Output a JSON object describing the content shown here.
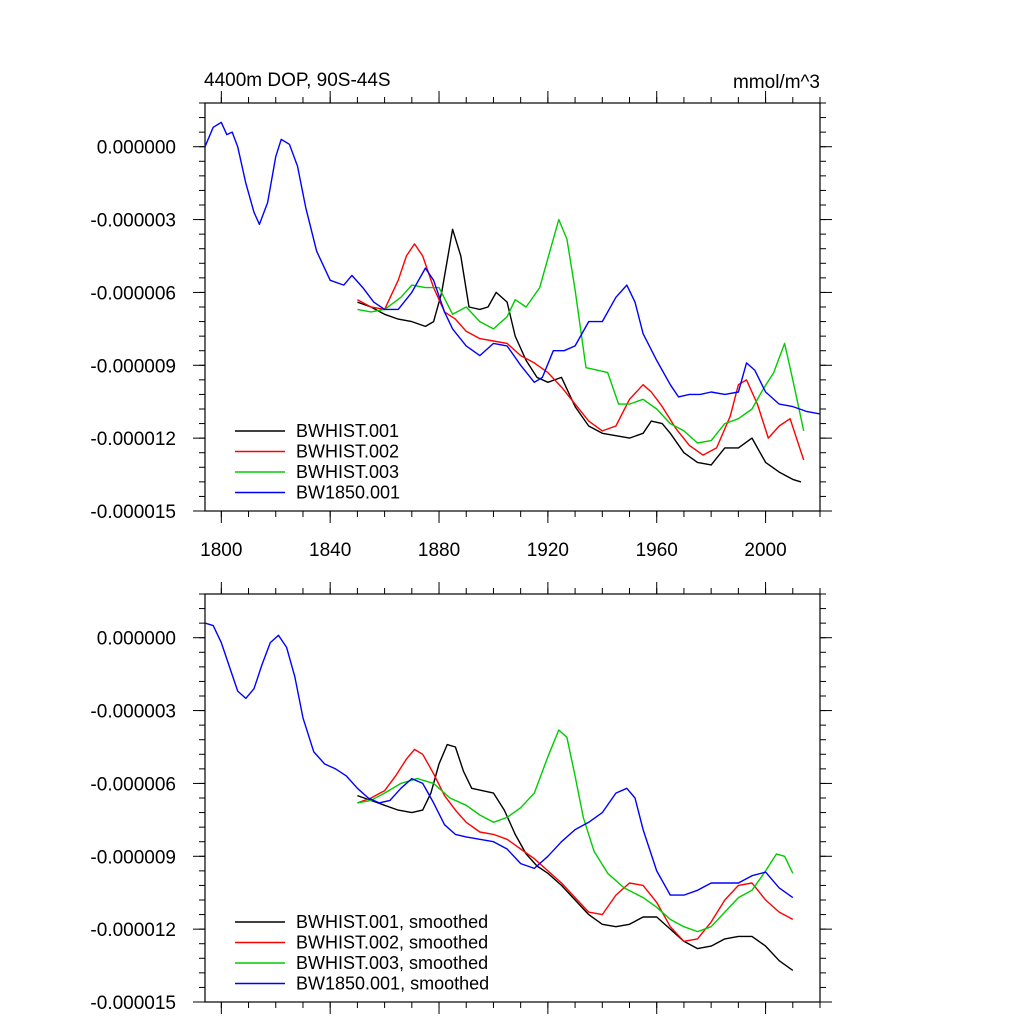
{
  "chart_data": [
    {
      "type": "line",
      "title": "4400m DOP, 90S-44S",
      "units": "mmol/m^3",
      "xlabel": "",
      "ylabel": "",
      "xlim": [
        1794,
        2020
      ],
      "ylim": [
        -1.5e-05,
        1.8e-06
      ],
      "xticks": [
        1800,
        1840,
        1880,
        1920,
        1960,
        2000
      ],
      "xtick_labels": [
        "1800",
        "1840",
        "1880",
        "1920",
        "1960",
        "2000"
      ],
      "yticks": [
        0,
        -3e-06,
        -6e-06,
        -9e-06,
        -1.2e-05,
        -1.5e-05
      ],
      "ytick_labels": [
        "0.000000",
        "-0.000003",
        "-0.000006",
        "-0.000009",
        "-0.000012",
        "-0.000015"
      ],
      "grid": false,
      "legend_position": "bottom-left",
      "series": [
        {
          "name": "BWHIST.001",
          "color": "#000000",
          "x": [
            1850,
            1855,
            1860,
            1865,
            1870,
            1875,
            1878,
            1881,
            1885,
            1888,
            1891,
            1895,
            1898,
            1901,
            1905,
            1908,
            1912,
            1916,
            1920,
            1925,
            1930,
            1935,
            1940,
            1945,
            1950,
            1955,
            1958,
            1962,
            1965,
            1970,
            1975,
            1980,
            1985,
            1990,
            1995,
            2000,
            2005,
            2010,
            2013
          ],
          "values": [
            -6.4e-06,
            -6.6e-06,
            -6.9e-06,
            -7.1e-06,
            -7.2e-06,
            -7.4e-06,
            -7.2e-06,
            -6e-06,
            -3.4e-06,
            -4.5e-06,
            -6.6e-06,
            -6.7e-06,
            -6.6e-06,
            -6e-06,
            -6.4e-06,
            -7.8e-06,
            -8.8e-06,
            -9.5e-06,
            -9.7e-06,
            -9.5e-06,
            -1.07e-05,
            -1.15e-05,
            -1.18e-05,
            -1.19e-05,
            -1.2e-05,
            -1.18e-05,
            -1.13e-05,
            -1.14e-05,
            -1.18e-05,
            -1.26e-05,
            -1.3e-05,
            -1.31e-05,
            -1.24e-05,
            -1.24e-05,
            -1.2e-05,
            -1.3e-05,
            -1.34e-05,
            -1.37e-05,
            -1.38e-05
          ]
        },
        {
          "name": "BWHIST.002",
          "color": "#ff0000",
          "x": [
            1850,
            1855,
            1860,
            1865,
            1868,
            1871,
            1874,
            1878,
            1882,
            1886,
            1890,
            1895,
            1900,
            1905,
            1910,
            1915,
            1920,
            1925,
            1930,
            1935,
            1940,
            1945,
            1950,
            1955,
            1958,
            1962,
            1967,
            1972,
            1977,
            1982,
            1987,
            1990,
            1993,
            1997,
            2001,
            2005,
            2009,
            2014
          ],
          "values": [
            -6.3e-06,
            -6.6e-06,
            -6.7e-06,
            -5.5e-06,
            -4.5e-06,
            -4e-06,
            -4.5e-06,
            -5.8e-06,
            -6.8e-06,
            -7.1e-06,
            -7.6e-06,
            -7.9e-06,
            -8e-06,
            -8.1e-06,
            -8.6e-06,
            -8.9e-06,
            -9.3e-06,
            -9.9e-06,
            -1.06e-05,
            -1.13e-05,
            -1.17e-05,
            -1.15e-05,
            -1.04e-05,
            -9.8e-06,
            -1.01e-05,
            -1.07e-05,
            -1.16e-05,
            -1.23e-05,
            -1.27e-05,
            -1.24e-05,
            -1.11e-05,
            -9.8e-06,
            -9.6e-06,
            -1.06e-05,
            -1.2e-05,
            -1.15e-05,
            -1.12e-05,
            -1.29e-05
          ]
        },
        {
          "name": "BWHIST.003",
          "color": "#00cc00",
          "x": [
            1850,
            1855,
            1860,
            1866,
            1870,
            1875,
            1880,
            1885,
            1890,
            1895,
            1900,
            1905,
            1908,
            1912,
            1917,
            1921,
            1924,
            1927,
            1930,
            1934,
            1938,
            1942,
            1946,
            1950,
            1955,
            1960,
            1965,
            1970,
            1975,
            1980,
            1985,
            1990,
            1995,
            1999,
            2003,
            2007,
            2010,
            2014
          ],
          "values": [
            -6.7e-06,
            -6.8e-06,
            -6.7e-06,
            -6.2e-06,
            -5.7e-06,
            -5.8e-06,
            -5.8e-06,
            -6.9e-06,
            -6.6e-06,
            -7.2e-06,
            -7.5e-06,
            -7e-06,
            -6.3e-06,
            -6.6e-06,
            -5.8e-06,
            -4.2e-06,
            -3e-06,
            -3.8e-06,
            -5.9e-06,
            -9.1e-06,
            -9.2e-06,
            -9.3e-06,
            -1.06e-05,
            -1.06e-05,
            -1.04e-05,
            -1.08e-05,
            -1.14e-05,
            -1.17e-05,
            -1.22e-05,
            -1.21e-05,
            -1.14e-05,
            -1.12e-05,
            -1.08e-05,
            -1e-05,
            -9.3e-06,
            -8.1e-06,
            -9.6e-06,
            -1.17e-05
          ]
        },
        {
          "name": "BW1850.001",
          "color": "#0000ff",
          "x": [
            1794,
            1797,
            1800,
            1802,
            1804,
            1806,
            1809,
            1812,
            1814,
            1817,
            1820,
            1822,
            1825,
            1828,
            1831,
            1835,
            1840,
            1845,
            1848,
            1852,
            1856,
            1860,
            1865,
            1870,
            1875,
            1878,
            1882,
            1885,
            1890,
            1895,
            1900,
            1905,
            1910,
            1915,
            1918,
            1922,
            1926,
            1930,
            1935,
            1940,
            1945,
            1949,
            1952,
            1955,
            1960,
            1965,
            1968,
            1972,
            1976,
            1980,
            1985,
            1990,
            1993,
            1996,
            2000,
            2005,
            2010,
            2015,
            2020
          ],
          "values": [
            0,
            8e-07,
            1e-06,
            5e-07,
            6e-07,
            0,
            -1.5e-06,
            -2.7e-06,
            -3.2e-06,
            -2.3e-06,
            -4e-07,
            3e-07,
            1e-07,
            -8e-07,
            -2.5e-06,
            -4.3e-06,
            -5.5e-06,
            -5.7e-06,
            -5.3e-06,
            -5.8e-06,
            -6.4e-06,
            -6.7e-06,
            -6.7e-06,
            -6e-06,
            -5e-06,
            -5.5e-06,
            -6.8e-06,
            -7.5e-06,
            -8.2e-06,
            -8.6e-06,
            -8.1e-06,
            -8.2e-06,
            -9e-06,
            -9.7e-06,
            -9.5e-06,
            -8.4e-06,
            -8.4e-06,
            -8.2e-06,
            -7.2e-06,
            -7.2e-06,
            -6.2e-06,
            -5.7e-06,
            -6.4e-06,
            -7.7e-06,
            -8.8e-06,
            -9.8e-06,
            -1.03e-05,
            -1.02e-05,
            -1.02e-05,
            -1.01e-05,
            -1.02e-05,
            -1.01e-05,
            -8.9e-06,
            -9.2e-06,
            -1.01e-05,
            -1.06e-05,
            -1.07e-05,
            -1.09e-05,
            -1.1e-05
          ]
        }
      ]
    },
    {
      "type": "line",
      "title": "",
      "xlabel": "",
      "ylabel": "",
      "xlim": [
        1794,
        2020
      ],
      "ylim": [
        -1.5e-05,
        1.8e-06
      ],
      "xticks": [
        1800,
        1840,
        1880,
        1920,
        1960,
        2000
      ],
      "yticks": [
        0,
        -3e-06,
        -6e-06,
        -9e-06,
        -1.2e-05,
        -1.5e-05
      ],
      "ytick_labels": [
        "0.000000",
        "-0.000003",
        "-0.000006",
        "-0.000009",
        "-0.000012",
        "-0.000015"
      ],
      "grid": false,
      "legend_position": "bottom-left",
      "series": [
        {
          "name": "BWHIST.001, smoothed",
          "color": "#000000",
          "x": [
            1850,
            1855,
            1860,
            1865,
            1870,
            1874,
            1877,
            1880,
            1883,
            1886,
            1889,
            1892,
            1896,
            1900,
            1904,
            1908,
            1912,
            1916,
            1920,
            1925,
            1930,
            1935,
            1940,
            1945,
            1950,
            1955,
            1960,
            1965,
            1970,
            1975,
            1980,
            1985,
            1990,
            1995,
            2000,
            2005,
            2010
          ],
          "values": [
            -6.5e-06,
            -6.7e-06,
            -6.9e-06,
            -7.1e-06,
            -7.2e-06,
            -7.1e-06,
            -6.4e-06,
            -5.2e-06,
            -4.4e-06,
            -4.5e-06,
            -5.5e-06,
            -6.2e-06,
            -6.3e-06,
            -6.4e-06,
            -7.1e-06,
            -8.1e-06,
            -8.9e-06,
            -9.4e-06,
            -9.7e-06,
            -1.02e-05,
            -1.08e-05,
            -1.14e-05,
            -1.18e-05,
            -1.19e-05,
            -1.18e-05,
            -1.15e-05,
            -1.15e-05,
            -1.2e-05,
            -1.25e-05,
            -1.28e-05,
            -1.27e-05,
            -1.24e-05,
            -1.23e-05,
            -1.23e-05,
            -1.27e-05,
            -1.33e-05,
            -1.37e-05
          ]
        },
        {
          "name": "BWHIST.002, smoothed",
          "color": "#ff0000",
          "x": [
            1850,
            1855,
            1860,
            1864,
            1868,
            1871,
            1874,
            1878,
            1882,
            1886,
            1890,
            1895,
            1900,
            1905,
            1910,
            1915,
            1920,
            1925,
            1930,
            1935,
            1940,
            1945,
            1950,
            1955,
            1960,
            1965,
            1970,
            1975,
            1980,
            1985,
            1990,
            1995,
            2000,
            2005,
            2010
          ],
          "values": [
            -6.8e-06,
            -6.6e-06,
            -6.3e-06,
            -5.7e-06,
            -5e-06,
            -4.6e-06,
            -4.8e-06,
            -5.6e-06,
            -6.5e-06,
            -7.1e-06,
            -7.6e-06,
            -8e-06,
            -8.1e-06,
            -8.3e-06,
            -8.7e-06,
            -9.1e-06,
            -9.6e-06,
            -1.01e-05,
            -1.07e-05,
            -1.13e-05,
            -1.14e-05,
            -1.06e-05,
            -1.01e-05,
            -1.02e-05,
            -1.09e-05,
            -1.19e-05,
            -1.25e-05,
            -1.24e-05,
            -1.17e-05,
            -1.08e-05,
            -1.02e-05,
            -1.01e-05,
            -1.08e-05,
            -1.13e-05,
            -1.16e-05
          ]
        },
        {
          "name": "BWHIST.003, smoothed",
          "color": "#00cc00",
          "x": [
            1850,
            1855,
            1860,
            1866,
            1872,
            1878,
            1884,
            1890,
            1895,
            1900,
            1905,
            1910,
            1915,
            1920,
            1924,
            1927,
            1930,
            1933,
            1937,
            1942,
            1948,
            1955,
            1960,
            1965,
            1970,
            1975,
            1980,
            1985,
            1990,
            1995,
            2000,
            2004,
            2007,
            2010
          ],
          "values": [
            -6.8e-06,
            -6.7e-06,
            -6.4e-06,
            -6e-06,
            -5.8e-06,
            -6e-06,
            -6.6e-06,
            -6.9e-06,
            -7.3e-06,
            -7.6e-06,
            -7.4e-06,
            -7e-06,
            -6.4e-06,
            -4.9e-06,
            -3.8e-06,
            -4.1e-06,
            -5.7e-06,
            -7.4e-06,
            -8.8e-06,
            -9.7e-06,
            -1.03e-05,
            -1.07e-05,
            -1.11e-05,
            -1.16e-05,
            -1.19e-05,
            -1.21e-05,
            -1.19e-05,
            -1.13e-05,
            -1.07e-05,
            -1.04e-05,
            -9.6e-06,
            -8.9e-06,
            -9e-06,
            -9.7e-06
          ]
        },
        {
          "name": "BW1850.001, smoothed",
          "color": "#0000ff",
          "x": [
            1794,
            1797,
            1800,
            1803,
            1806,
            1809,
            1812,
            1815,
            1818,
            1821,
            1824,
            1827,
            1830,
            1834,
            1838,
            1842,
            1846,
            1850,
            1854,
            1858,
            1862,
            1866,
            1870,
            1874,
            1878,
            1882,
            1886,
            1890,
            1895,
            1900,
            1905,
            1910,
            1915,
            1920,
            1925,
            1930,
            1935,
            1940,
            1945,
            1949,
            1952,
            1955,
            1960,
            1965,
            1970,
            1975,
            1980,
            1985,
            1990,
            1995,
            2000,
            2005,
            2010
          ],
          "values": [
            6e-07,
            5e-07,
            -2e-07,
            -1.2e-06,
            -2.2e-06,
            -2.5e-06,
            -2.1e-06,
            -1.1e-06,
            -2e-07,
            1e-07,
            -4e-07,
            -1.6e-06,
            -3.3e-06,
            -4.7e-06,
            -5.2e-06,
            -5.4e-06,
            -5.7e-06,
            -6.2e-06,
            -6.6e-06,
            -6.8e-06,
            -6.7e-06,
            -6.2e-06,
            -5.8e-06,
            -6e-06,
            -6.8e-06,
            -7.7e-06,
            -8.1e-06,
            -8.2e-06,
            -8.3e-06,
            -8.4e-06,
            -8.7e-06,
            -9.3e-06,
            -9.5e-06,
            -9e-06,
            -8.4e-06,
            -7.9e-06,
            -7.6e-06,
            -7.2e-06,
            -6.4e-06,
            -6.2e-06,
            -6.6e-06,
            -7.9e-06,
            -9.6e-06,
            -1.06e-05,
            -1.06e-05,
            -1.04e-05,
            -1.01e-05,
            -1.01e-05,
            -1.01e-05,
            -9.8e-06,
            -9.65e-06,
            -1.03e-05,
            -1.07e-05
          ]
        }
      ]
    }
  ]
}
